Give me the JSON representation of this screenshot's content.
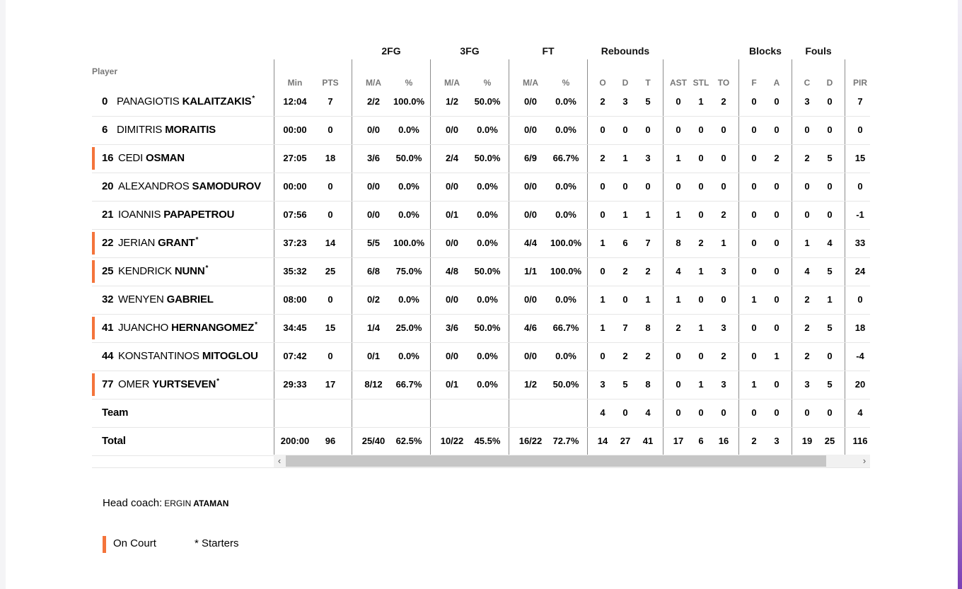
{
  "groups": [
    {
      "label": "2FG",
      "center": 423
    },
    {
      "label": "3FG",
      "center": 534
    },
    {
      "label": "FT",
      "center": 645
    },
    {
      "label": "Rebounds",
      "center": 754
    },
    {
      "label": "Blocks",
      "center": 952
    },
    {
      "label": "Fouls",
      "center": 1027
    }
  ],
  "player_header": "Player",
  "columns": [
    "Min",
    "PTS",
    "M/A",
    "%",
    "M/A",
    "%",
    "M/A",
    "%",
    "O",
    "D",
    "T",
    "AST",
    "STL",
    "TO",
    "F",
    "A",
    "C",
    "D",
    "PIR"
  ],
  "players": [
    {
      "no": "0",
      "first": "PANAGIOTIS",
      "last": "KALAITZAKIS",
      "starter": true,
      "on_court": false,
      "stats": [
        "12:04",
        "7",
        "2/2",
        "100.0%",
        "1/2",
        "50.0%",
        "0/0",
        "0.0%",
        "2",
        "3",
        "5",
        "0",
        "1",
        "2",
        "0",
        "0",
        "3",
        "0",
        "7"
      ]
    },
    {
      "no": "6",
      "first": "DIMITRIS",
      "last": "MORAITIS",
      "starter": false,
      "on_court": false,
      "stats": [
        "00:00",
        "0",
        "0/0",
        "0.0%",
        "0/0",
        "0.0%",
        "0/0",
        "0.0%",
        "0",
        "0",
        "0",
        "0",
        "0",
        "0",
        "0",
        "0",
        "0",
        "0",
        "0"
      ]
    },
    {
      "no": "16",
      "first": "CEDI",
      "last": "OSMAN",
      "starter": false,
      "on_court": true,
      "stats": [
        "27:05",
        "18",
        "3/6",
        "50.0%",
        "2/4",
        "50.0%",
        "6/9",
        "66.7%",
        "2",
        "1",
        "3",
        "1",
        "0",
        "0",
        "0",
        "2",
        "2",
        "5",
        "15"
      ]
    },
    {
      "no": "20",
      "first": "ALEXANDROS",
      "last": "SAMODUROV",
      "starter": false,
      "on_court": false,
      "stats": [
        "00:00",
        "0",
        "0/0",
        "0.0%",
        "0/0",
        "0.0%",
        "0/0",
        "0.0%",
        "0",
        "0",
        "0",
        "0",
        "0",
        "0",
        "0",
        "0",
        "0",
        "0",
        "0"
      ]
    },
    {
      "no": "21",
      "first": "IOANNIS",
      "last": "PAPAPETROU",
      "starter": false,
      "on_court": false,
      "stats": [
        "07:56",
        "0",
        "0/0",
        "0.0%",
        "0/1",
        "0.0%",
        "0/0",
        "0.0%",
        "0",
        "1",
        "1",
        "1",
        "0",
        "2",
        "0",
        "0",
        "0",
        "0",
        "-1"
      ]
    },
    {
      "no": "22",
      "first": "JERIAN",
      "last": "GRANT",
      "starter": true,
      "on_court": true,
      "stats": [
        "37:23",
        "14",
        "5/5",
        "100.0%",
        "0/0",
        "0.0%",
        "4/4",
        "100.0%",
        "1",
        "6",
        "7",
        "8",
        "2",
        "1",
        "0",
        "0",
        "1",
        "4",
        "33"
      ]
    },
    {
      "no": "25",
      "first": "KENDRICK",
      "last": "NUNN",
      "starter": true,
      "on_court": true,
      "stats": [
        "35:32",
        "25",
        "6/8",
        "75.0%",
        "4/8",
        "50.0%",
        "1/1",
        "100.0%",
        "0",
        "2",
        "2",
        "4",
        "1",
        "3",
        "0",
        "0",
        "4",
        "5",
        "24"
      ]
    },
    {
      "no": "32",
      "first": "WENYEN",
      "last": "GABRIEL",
      "starter": false,
      "on_court": false,
      "stats": [
        "08:00",
        "0",
        "0/2",
        "0.0%",
        "0/0",
        "0.0%",
        "0/0",
        "0.0%",
        "1",
        "0",
        "1",
        "1",
        "0",
        "0",
        "1",
        "0",
        "2",
        "1",
        "0"
      ]
    },
    {
      "no": "41",
      "first": "JUANCHO",
      "last": "HERNANGOMEZ",
      "starter": true,
      "on_court": true,
      "stats": [
        "34:45",
        "15",
        "1/4",
        "25.0%",
        "3/6",
        "50.0%",
        "4/6",
        "66.7%",
        "1",
        "7",
        "8",
        "2",
        "1",
        "3",
        "0",
        "0",
        "2",
        "5",
        "18"
      ]
    },
    {
      "no": "44",
      "first": "KONSTANTINOS",
      "last": "MITOGLOU",
      "starter": false,
      "on_court": false,
      "stats": [
        "07:42",
        "0",
        "0/1",
        "0.0%",
        "0/0",
        "0.0%",
        "0/0",
        "0.0%",
        "0",
        "2",
        "2",
        "0",
        "0",
        "2",
        "0",
        "1",
        "2",
        "0",
        "-4"
      ]
    },
    {
      "no": "77",
      "first": "OMER",
      "last": "YURTSEVEN",
      "starter": true,
      "on_court": true,
      "stats": [
        "29:33",
        "17",
        "8/12",
        "66.7%",
        "0/1",
        "0.0%",
        "1/2",
        "50.0%",
        "3",
        "5",
        "8",
        "0",
        "1",
        "3",
        "1",
        "0",
        "3",
        "5",
        "20"
      ]
    }
  ],
  "team_row": {
    "label": "Team",
    "stats": [
      "",
      "",
      "",
      "",
      "",
      "",
      "",
      "",
      "4",
      "0",
      "4",
      "0",
      "0",
      "0",
      "0",
      "0",
      "0",
      "0",
      "4"
    ]
  },
  "total_row": {
    "label": "Total",
    "stats": [
      "200:00",
      "96",
      "25/40",
      "62.5%",
      "10/22",
      "45.5%",
      "16/22",
      "72.7%",
      "14",
      "27",
      "41",
      "17",
      "6",
      "16",
      "2",
      "3",
      "19",
      "25",
      "116"
    ]
  },
  "scroll": {
    "left_arrow": "‹",
    "right_arrow": "›"
  },
  "coach": {
    "label": "Head coach:",
    "first": "ERGIN",
    "last": "ATAMAN"
  },
  "legend": {
    "on_court": "On Court",
    "starters": "* Starters"
  },
  "colors": {
    "on_court": "#f4743b",
    "divider": "#8c8c8c",
    "header_gray": "#777777"
  }
}
